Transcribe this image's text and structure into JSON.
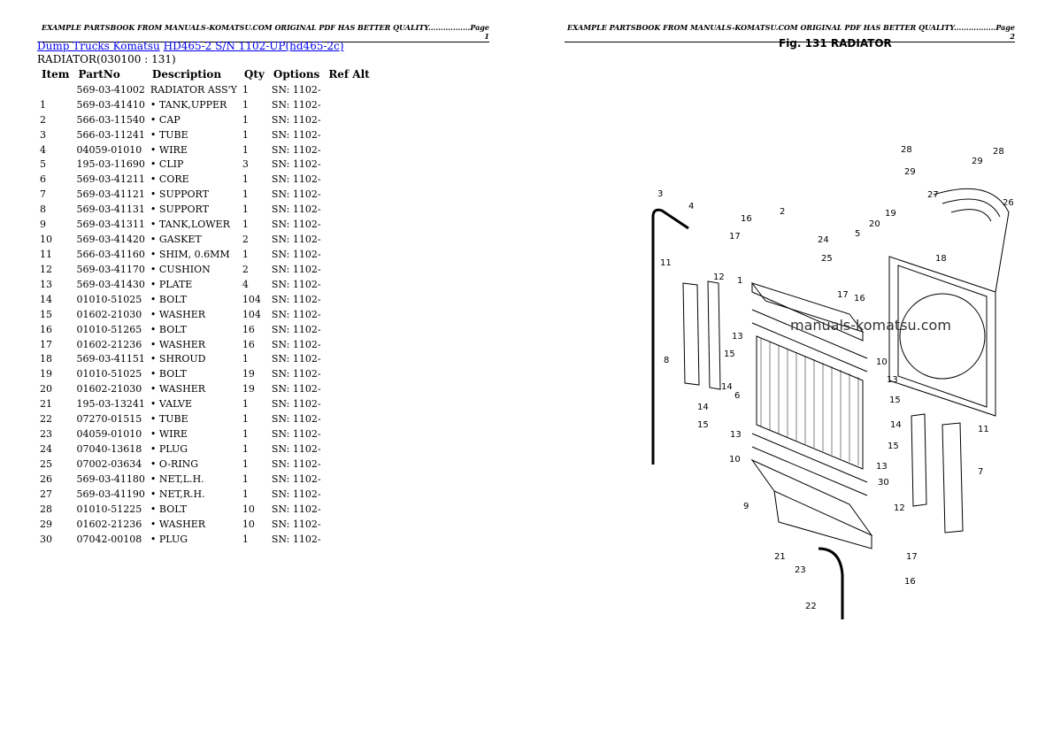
{
  "header_left": "EXAMPLE PARTSBOOK FROM MANUALS-KOMATSU.COM ORIGINAL PDF HAS BETTER QUALITY.................Page 1",
  "header_right": "EXAMPLE PARTSBOOK FROM MANUALS-KOMATSU.COM ORIGINAL PDF HAS BETTER QUALITY.................Page 2",
  "breadcrumb": {
    "link1": "Dump Trucks Komatsu",
    "link2": "HD465-2 S/N 1102-UP(hd465-2c)"
  },
  "section": "RADIATOR(030100 : 131)",
  "columns": [
    "Item",
    "PartNo",
    "Description",
    "Qty",
    "Options",
    "Ref Alt"
  ],
  "rows": [
    [
      "",
      "569-03-41002",
      "RADIATOR ASS'Y",
      "1",
      "SN: 1102-"
    ],
    [
      "1",
      "569-03-41410",
      "• TANK,UPPER",
      "1",
      "SN: 1102-"
    ],
    [
      "2",
      "566-03-11540",
      "• CAP",
      "1",
      "SN: 1102-"
    ],
    [
      "3",
      "566-03-11241",
      "• TUBE",
      "1",
      "SN: 1102-"
    ],
    [
      "4",
      "04059-01010",
      "• WIRE",
      "1",
      "SN: 1102-"
    ],
    [
      "5",
      "195-03-11690",
      "• CLIP",
      "3",
      "SN: 1102-"
    ],
    [
      "6",
      "569-03-41211",
      "• CORE",
      "1",
      "SN: 1102-"
    ],
    [
      "7",
      "569-03-41121",
      "• SUPPORT",
      "1",
      "SN: 1102-"
    ],
    [
      "8",
      "569-03-41131",
      "• SUPPORT",
      "1",
      "SN: 1102-"
    ],
    [
      "9",
      "569-03-41311",
      "• TANK,LOWER",
      "1",
      "SN: 1102-"
    ],
    [
      "10",
      "569-03-41420",
      "• GASKET",
      "2",
      "SN: 1102-"
    ],
    [
      "11",
      "566-03-41160",
      "• SHIM, 0.6MM",
      "1",
      "SN: 1102-"
    ],
    [
      "12",
      "569-03-41170",
      "• CUSHION",
      "2",
      "SN: 1102-"
    ],
    [
      "13",
      "569-03-41430",
      "• PLATE",
      "4",
      "SN: 1102-"
    ],
    [
      "14",
      "01010-51025",
      "• BOLT",
      "104",
      "SN: 1102-"
    ],
    [
      "15",
      "01602-21030",
      "• WASHER",
      "104",
      "SN: 1102-"
    ],
    [
      "16",
      "01010-51265",
      "• BOLT",
      "16",
      "SN: 1102-"
    ],
    [
      "17",
      "01602-21236",
      "• WASHER",
      "16",
      "SN: 1102-"
    ],
    [
      "18",
      "569-03-41151",
      "• SHROUD",
      "1",
      "SN: 1102-"
    ],
    [
      "19",
      "01010-51025",
      "• BOLT",
      "19",
      "SN: 1102-"
    ],
    [
      "20",
      "01602-21030",
      "• WASHER",
      "19",
      "SN: 1102-"
    ],
    [
      "21",
      "195-03-13241",
      "• VALVE",
      "1",
      "SN: 1102-"
    ],
    [
      "22",
      "07270-01515",
      "• TUBE",
      "1",
      "SN: 1102-"
    ],
    [
      "23",
      "04059-01010",
      "• WIRE",
      "1",
      "SN: 1102-"
    ],
    [
      "24",
      "07040-13618",
      "• PLUG",
      "1",
      "SN: 1102-"
    ],
    [
      "25",
      "07002-03634",
      "• O-RING",
      "1",
      "SN: 1102-"
    ],
    [
      "26",
      "569-03-41180",
      "• NET,L.H.",
      "1",
      "SN: 1102-"
    ],
    [
      "27",
      "569-03-41190",
      "• NET,R.H.",
      "1",
      "SN: 1102-"
    ],
    [
      "28",
      "01010-51225",
      "• BOLT",
      "10",
      "SN: 1102-"
    ],
    [
      "29",
      "01602-21236",
      "• WASHER",
      "10",
      "SN: 1102-"
    ],
    [
      "30",
      "07042-00108",
      "• PLUG",
      "1",
      "SN: 1102-"
    ]
  ],
  "figure": {
    "title": "Fig. 131   RADIATOR",
    "watermark": "manuals-komatsu.com",
    "callouts": [
      "1",
      "2",
      "3",
      "4",
      "5",
      "6",
      "7",
      "8",
      "9",
      "10",
      "11",
      "12",
      "13",
      "14",
      "15",
      "16",
      "17",
      "18",
      "19",
      "20",
      "21",
      "22",
      "23",
      "24",
      "25",
      "26",
      "27",
      "28",
      "29",
      "30"
    ]
  }
}
